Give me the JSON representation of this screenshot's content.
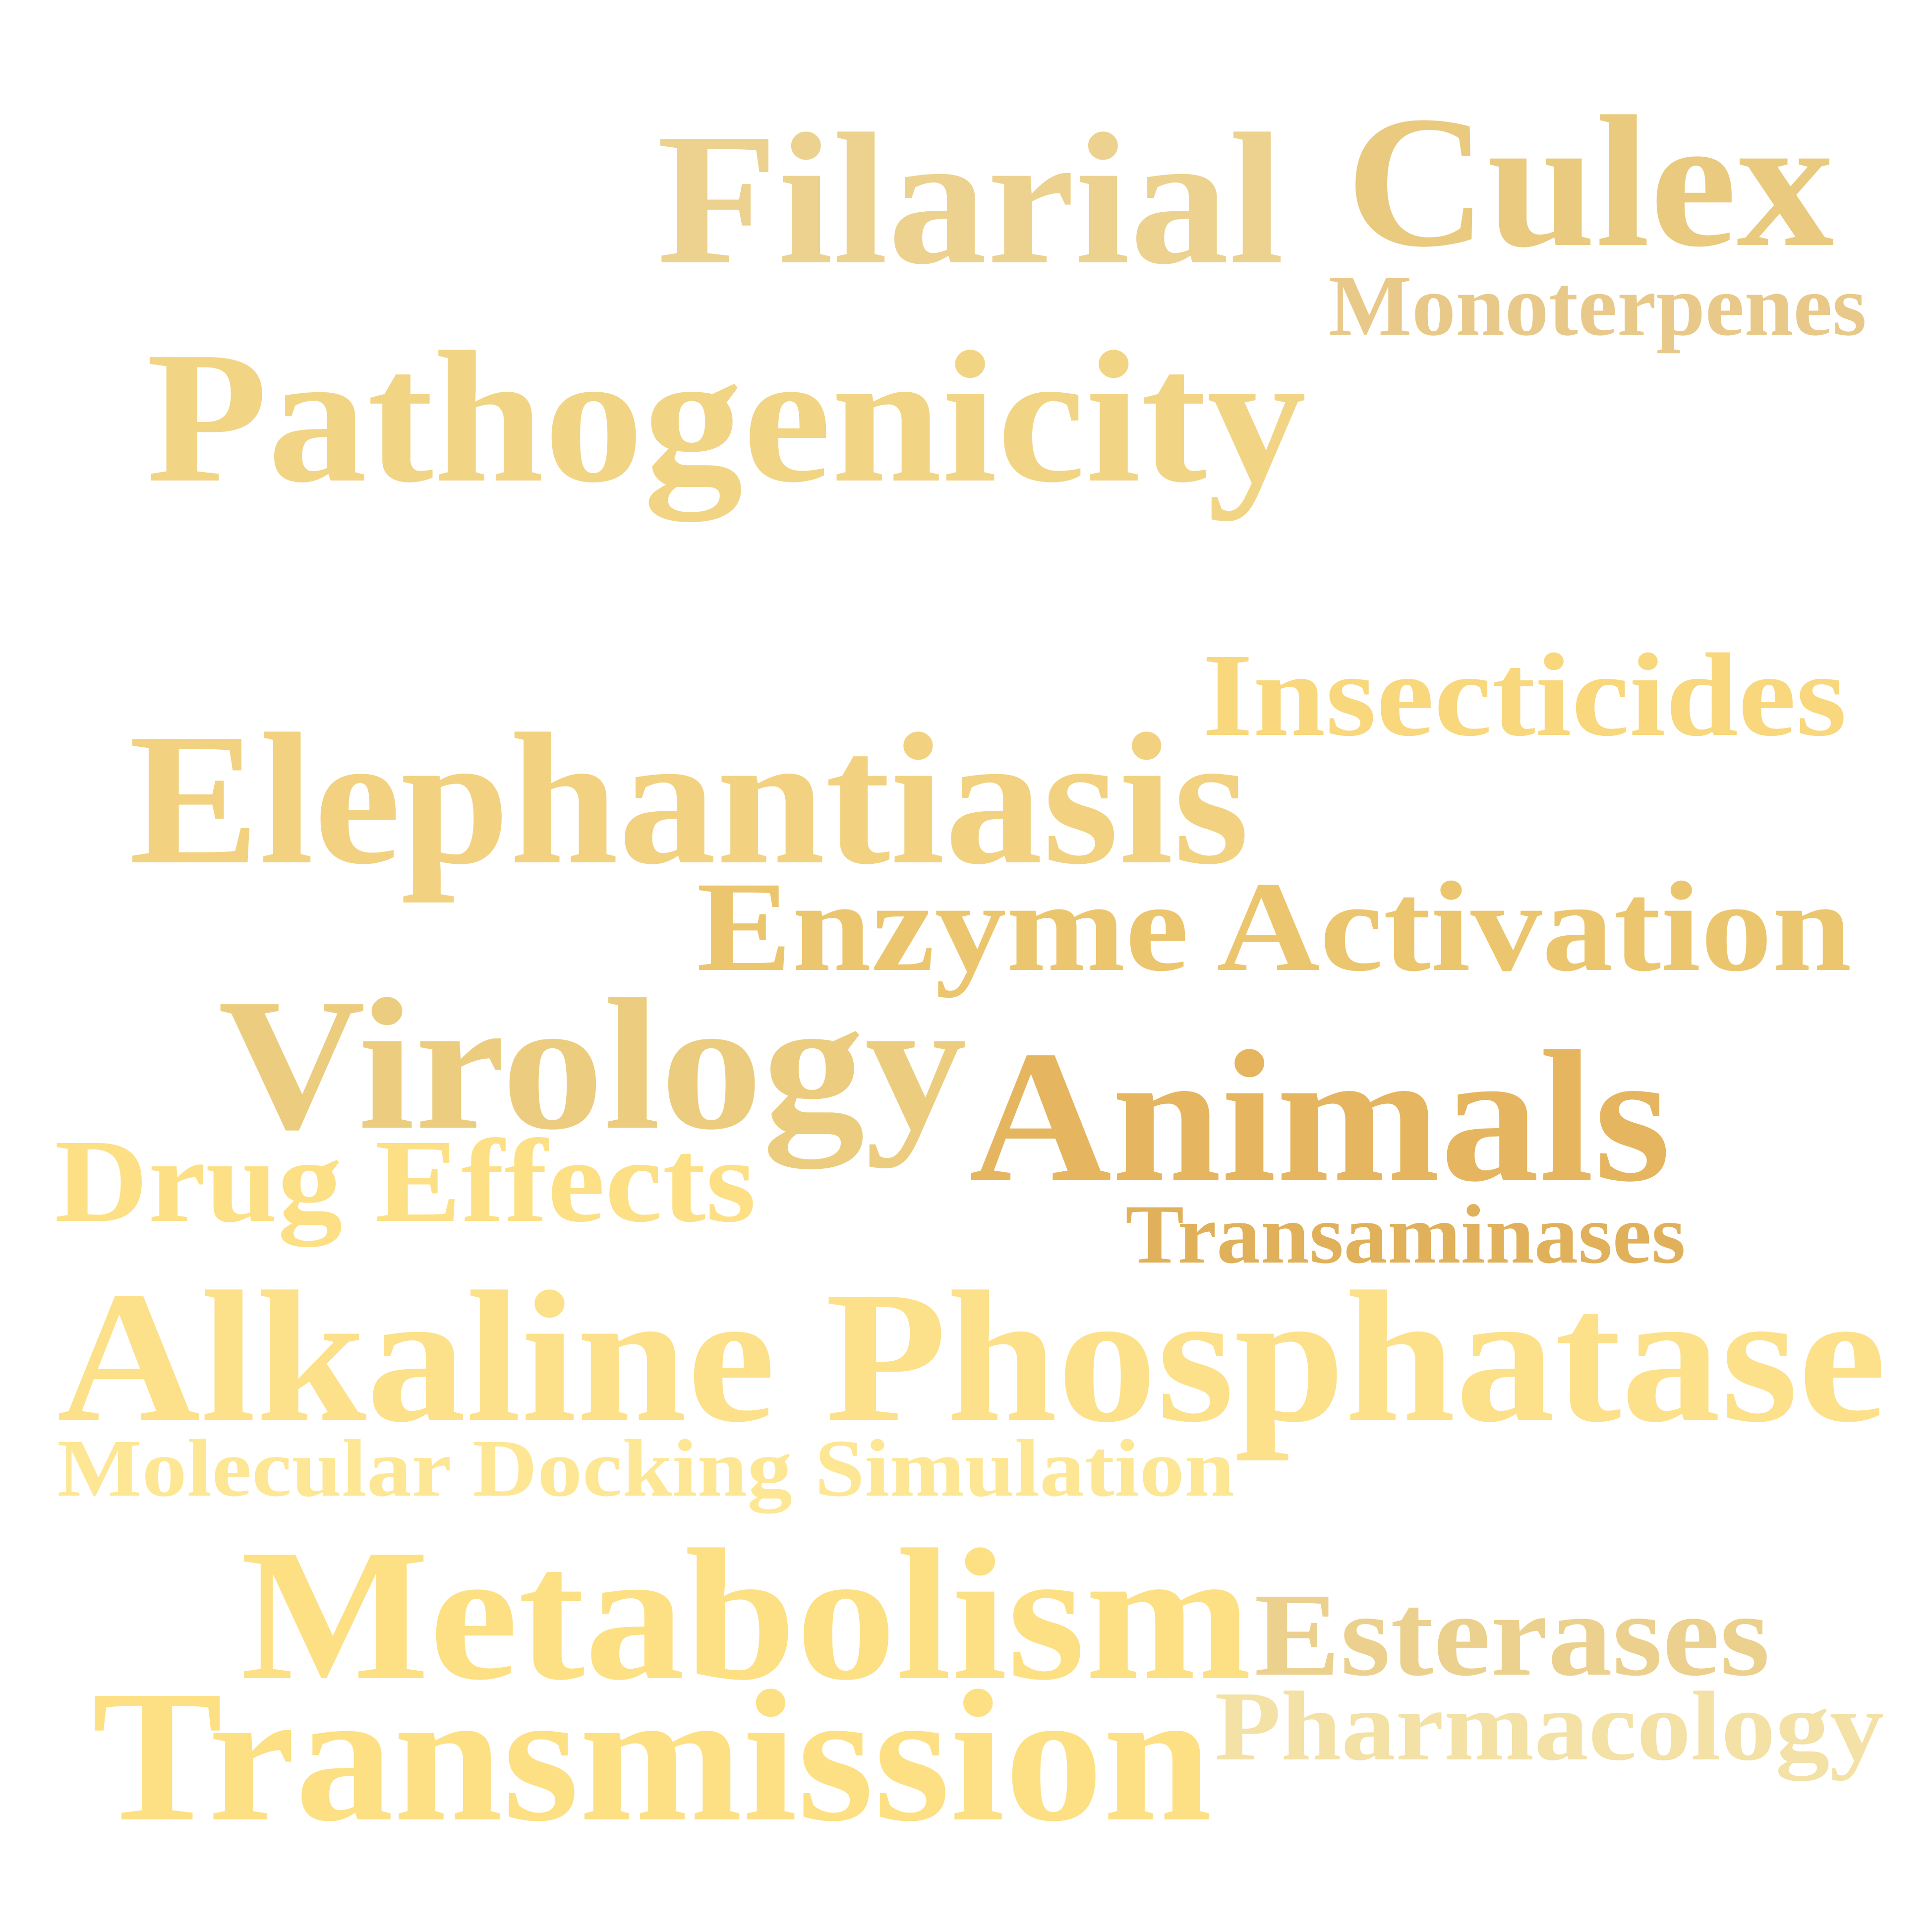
{
  "words": [
    {
      "id": "filarial",
      "text": "Filarial",
      "color": "#ecd18f"
    },
    {
      "id": "culex",
      "text": "Culex",
      "color": "#e9ca7f"
    },
    {
      "id": "monoterpenes",
      "text": "Monoterpenes",
      "color": "#e9c98a"
    },
    {
      "id": "pathogenicity",
      "text": "Pathogenicity",
      "color": "#f2d485"
    },
    {
      "id": "insecticides",
      "text": "Insecticides",
      "color": "#f8d77d"
    },
    {
      "id": "elephantiasis",
      "text": "Elephantiasis",
      "color": "#f2d281"
    },
    {
      "id": "enzyme-activation",
      "text": "Enzyme Activation",
      "color": "#ecc66e"
    },
    {
      "id": "virology",
      "text": "Virology",
      "color": "#eccd7f"
    },
    {
      "id": "animals",
      "text": "Animals",
      "color": "#e5b560"
    },
    {
      "id": "drug-effects",
      "text": "Drug Effects",
      "color": "#fde085"
    },
    {
      "id": "transaminases",
      "text": "Transaminases",
      "color": "#e0b05b"
    },
    {
      "id": "alkaline-phosphatase",
      "text": "Alkaline Phosphatase",
      "color": "#fde08a"
    },
    {
      "id": "molecular-docking-simulation",
      "text": "Molecular Docking Simulation",
      "color": "#fde795"
    },
    {
      "id": "metabolism",
      "text": "Metabolism",
      "color": "#fde084"
    },
    {
      "id": "esterases",
      "text": "Esterases",
      "color": "#ecd08e"
    },
    {
      "id": "pharmacology",
      "text": "Pharmacology",
      "color": "#f3e1a5"
    },
    {
      "id": "transmission",
      "text": "Transmission",
      "color": "#fde084"
    }
  ]
}
